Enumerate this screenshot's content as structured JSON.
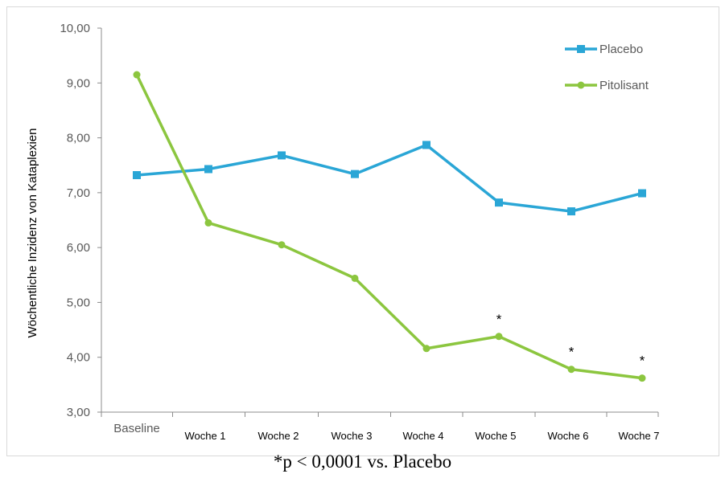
{
  "chart_data": {
    "type": "line",
    "categories": [
      "Baseline",
      "Woche 1",
      "Woche 2",
      "Woche 3",
      "Woche 4",
      "Woche 5",
      "Woche 6",
      "Woche 7"
    ],
    "series": [
      {
        "name": "Placebo",
        "color": "#2aa6d6",
        "marker": "square",
        "values": [
          7.32,
          7.43,
          7.68,
          7.34,
          7.87,
          6.82,
          6.66,
          6.99
        ]
      },
      {
        "name": "Pitolisant",
        "color": "#8cc63f",
        "marker": "circle",
        "values": [
          9.15,
          6.45,
          6.05,
          5.44,
          4.16,
          4.38,
          3.78,
          3.62
        ]
      }
    ],
    "ylabel": "Wöchentliche Inzidenz von Kataplexien",
    "xlabel": "",
    "ylim": [
      3,
      10
    ],
    "yticks": [
      "3,00",
      "4,00",
      "5,00",
      "6,00",
      "7,00",
      "8,00",
      "9,00",
      "10,00"
    ],
    "legend_position": "top-right",
    "grid": false,
    "significance_marks": [
      {
        "category": "Woche 5",
        "label": "*"
      },
      {
        "category": "Woche 6",
        "label": "*"
      },
      {
        "category": "Woche 7",
        "label": "*"
      }
    ]
  },
  "footnote": "*p < 0,0001 vs. Placebo"
}
